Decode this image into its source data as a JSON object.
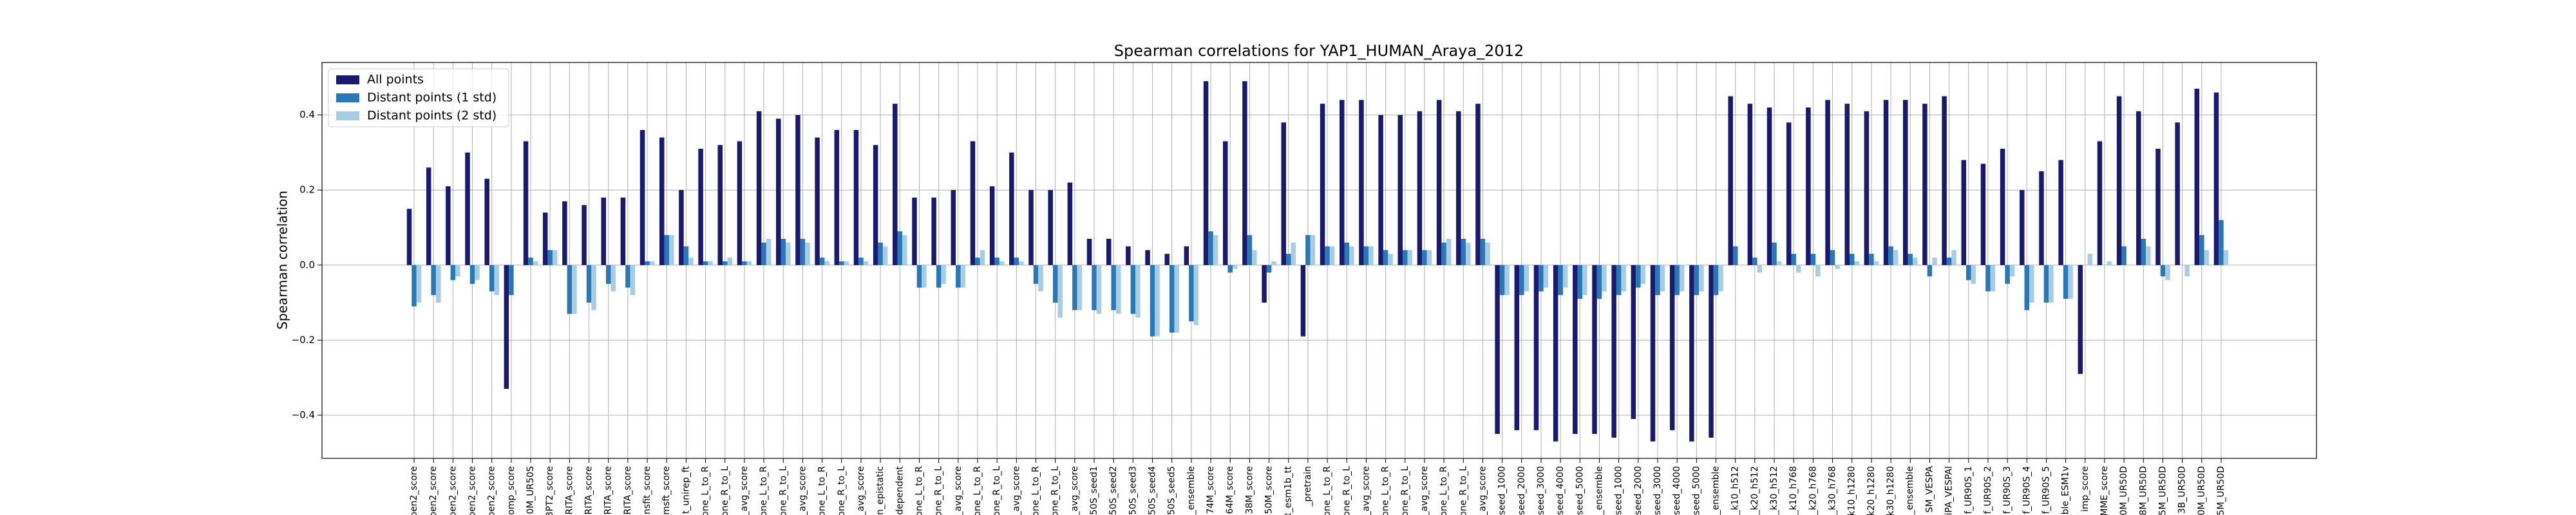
{
  "chart_data": {
    "type": "bar",
    "title": "Spearman correlations for YAP1_HUMAN_Araya_2012",
    "ylabel": "Spearman correlation",
    "categories": [
      "pen2_score",
      "pen2_score",
      "pen2_score",
      "pen2_score",
      "pen2_score",
      "omp_score",
      "0M_UR50S",
      "3PT2_score",
      "RITA_score",
      "RITA_score",
      "RITA_score",
      "RITA_score",
      "nsfit_score",
      "_msft_score",
      "t_unirep_ft",
      "one_L_to_R",
      "one_R_to_L",
      "_avg_score",
      "one_L_to_R",
      "one_R_to_L",
      "_avg_score",
      "one_L_to_R",
      "one_R_to_L",
      "_avg_score",
      "n_epistatic",
      "dependent",
      "one_L_to_R",
      "one_R_to_L",
      "_avg_score",
      "one_L_to_R",
      "one_R_to_L",
      "_avg_score",
      "one_L_to_R",
      "one_R_to_L",
      "_avg_score",
      "50S_seed1",
      "50S_seed2",
      "50S_seed3",
      "50S_seed4",
      "50S_seed5",
      "_ensemble",
      "74M_score",
      "64M_score",
      "38M_score",
      "50M_score",
      "t_esm1b_tt",
      "_pretrain",
      "one_L_to_R",
      "one_R_to_L",
      "_avg_score",
      "one_L_to_R",
      "one_R_to_L",
      "_avg_score",
      "one_L_to_R",
      "one_R_to_L",
      "_avg_score",
      "seed_1000",
      "seed_2000",
      "seed_3000",
      "seed_4000",
      "seed_5000",
      "_ensemble",
      "seed_1000",
      "seed_2000",
      "seed_3000",
      "seed_4000",
      "seed_5000",
      "_ensemble",
      "_k10_h512",
      "_k20_h512",
      "_k30_h512",
      "_k10_h768",
      "_k20_h768",
      "_k30_h768",
      "k10_h1280",
      "k20_h1280",
      "k30_h1280",
      "_ensemble",
      "SM_VESPA",
      "iPA_VESPAl",
      "f_UR90S_1",
      "f_UR90S_2",
      "f_UR90S_3",
      "f_UR90S_4",
      "f_UR90S_5",
      "ble_ESM1v",
      "imp_score",
      "MME_score",
      "0M_UR50D",
      "8M_UR50D",
      "5M_UR50D",
      "3B_UR50D",
      "0M_UR50D",
      "5M_UR50D"
    ],
    "series": [
      {
        "name": "All points",
        "color": "#191970",
        "values": [
          0.15,
          0.26,
          0.21,
          0.3,
          0.23,
          -0.33,
          0.33,
          0.14,
          0.17,
          0.16,
          0.18,
          0.18,
          0.36,
          0.34,
          0.2,
          0.31,
          0.32,
          0.33,
          0.41,
          0.39,
          0.4,
          0.34,
          0.36,
          0.36,
          0.32,
          0.43,
          0.18,
          0.18,
          0.2,
          0.33,
          0.21,
          0.3,
          0.2,
          0.2,
          0.22,
          0.07,
          0.07,
          0.05,
          0.04,
          0.03,
          0.05,
          0.49,
          0.33,
          0.49,
          -0.1,
          0.38,
          -0.19,
          0.43,
          0.44,
          0.44,
          0.4,
          0.4,
          0.41,
          0.44,
          0.41,
          0.43,
          -0.45,
          -0.44,
          -0.44,
          -0.47,
          -0.45,
          -0.45,
          -0.46,
          -0.41,
          -0.47,
          -0.44,
          -0.47,
          -0.46,
          0.45,
          0.43,
          0.42,
          0.38,
          0.42,
          0.44,
          0.43,
          0.41,
          0.44,
          0.44,
          0.43,
          0.45,
          0.28,
          0.27,
          0.31,
          0.2,
          0.25,
          0.28,
          -0.29,
          0.33,
          0.45,
          0.41,
          0.31,
          0.38,
          0.47,
          0.46
        ]
      },
      {
        "name": "Distant points (1 std)",
        "color": "#2878b8",
        "values": [
          -0.11,
          -0.08,
          -0.04,
          -0.05,
          -0.07,
          -0.08,
          0.02,
          0.04,
          -0.13,
          -0.1,
          -0.05,
          -0.06,
          0.01,
          0.08,
          0.05,
          0.01,
          0.01,
          0.01,
          0.06,
          0.07,
          0.07,
          0.02,
          0.01,
          0.02,
          0.06,
          0.09,
          -0.06,
          -0.06,
          -0.06,
          0.02,
          0.02,
          0.02,
          -0.05,
          -0.1,
          -0.12,
          -0.12,
          -0.12,
          -0.13,
          -0.19,
          -0.18,
          -0.15,
          0.09,
          -0.02,
          0.08,
          -0.02,
          0.03,
          0.08,
          0.05,
          0.06,
          0.05,
          0.04,
          0.04,
          0.04,
          0.06,
          0.07,
          0.07,
          -0.08,
          -0.08,
          -0.07,
          -0.08,
          -0.09,
          -0.09,
          -0.08,
          -0.06,
          -0.08,
          -0.08,
          -0.08,
          -0.08,
          0.05,
          0.02,
          0.06,
          0.03,
          0.03,
          0.04,
          0.03,
          0.03,
          0.05,
          0.03,
          -0.03,
          0.02,
          -0.04,
          -0.07,
          -0.05,
          -0.12,
          -0.1,
          -0.09,
          0.0,
          0.0,
          0.05,
          0.07,
          -0.03,
          0.0,
          0.08,
          0.12
        ]
      },
      {
        "name": "Distant points (2 std)",
        "color": "#a6cde2",
        "values": [
          -0.1,
          -0.1,
          -0.03,
          -0.04,
          -0.08,
          0.0,
          0.01,
          0.04,
          -0.13,
          -0.12,
          -0.07,
          -0.08,
          0.01,
          0.08,
          0.02,
          0.01,
          0.02,
          0.01,
          0.07,
          0.06,
          0.06,
          0.01,
          0.01,
          0.01,
          0.05,
          0.08,
          -0.06,
          -0.05,
          -0.06,
          0.04,
          0.01,
          0.01,
          -0.07,
          -0.14,
          -0.12,
          -0.13,
          -0.13,
          -0.14,
          -0.19,
          -0.18,
          -0.16,
          0.08,
          -0.01,
          0.04,
          0.01,
          0.06,
          0.08,
          0.05,
          0.05,
          0.05,
          0.03,
          0.04,
          0.04,
          0.07,
          0.06,
          0.06,
          -0.08,
          -0.07,
          -0.06,
          -0.06,
          -0.08,
          -0.07,
          -0.07,
          -0.05,
          -0.07,
          -0.07,
          -0.07,
          -0.07,
          0.0,
          -0.02,
          0.01,
          -0.02,
          -0.03,
          -0.01,
          0.01,
          0.01,
          0.04,
          0.02,
          0.02,
          0.04,
          -0.05,
          -0.07,
          -0.03,
          -0.1,
          -0.1,
          -0.09,
          0.03,
          0.01,
          0.0,
          0.05,
          -0.04,
          -0.03,
          0.04,
          0.04
        ]
      }
    ],
    "ylim": [
      -0.515,
      0.54
    ],
    "yticks": [
      {
        "value": -0.4,
        "label": "−0.4"
      },
      {
        "value": -0.2,
        "label": "−0.2"
      },
      {
        "value": 0,
        "label": "0.0"
      },
      0.2,
      0.4
    ],
    "grid": true,
    "legend": "upper left"
  }
}
